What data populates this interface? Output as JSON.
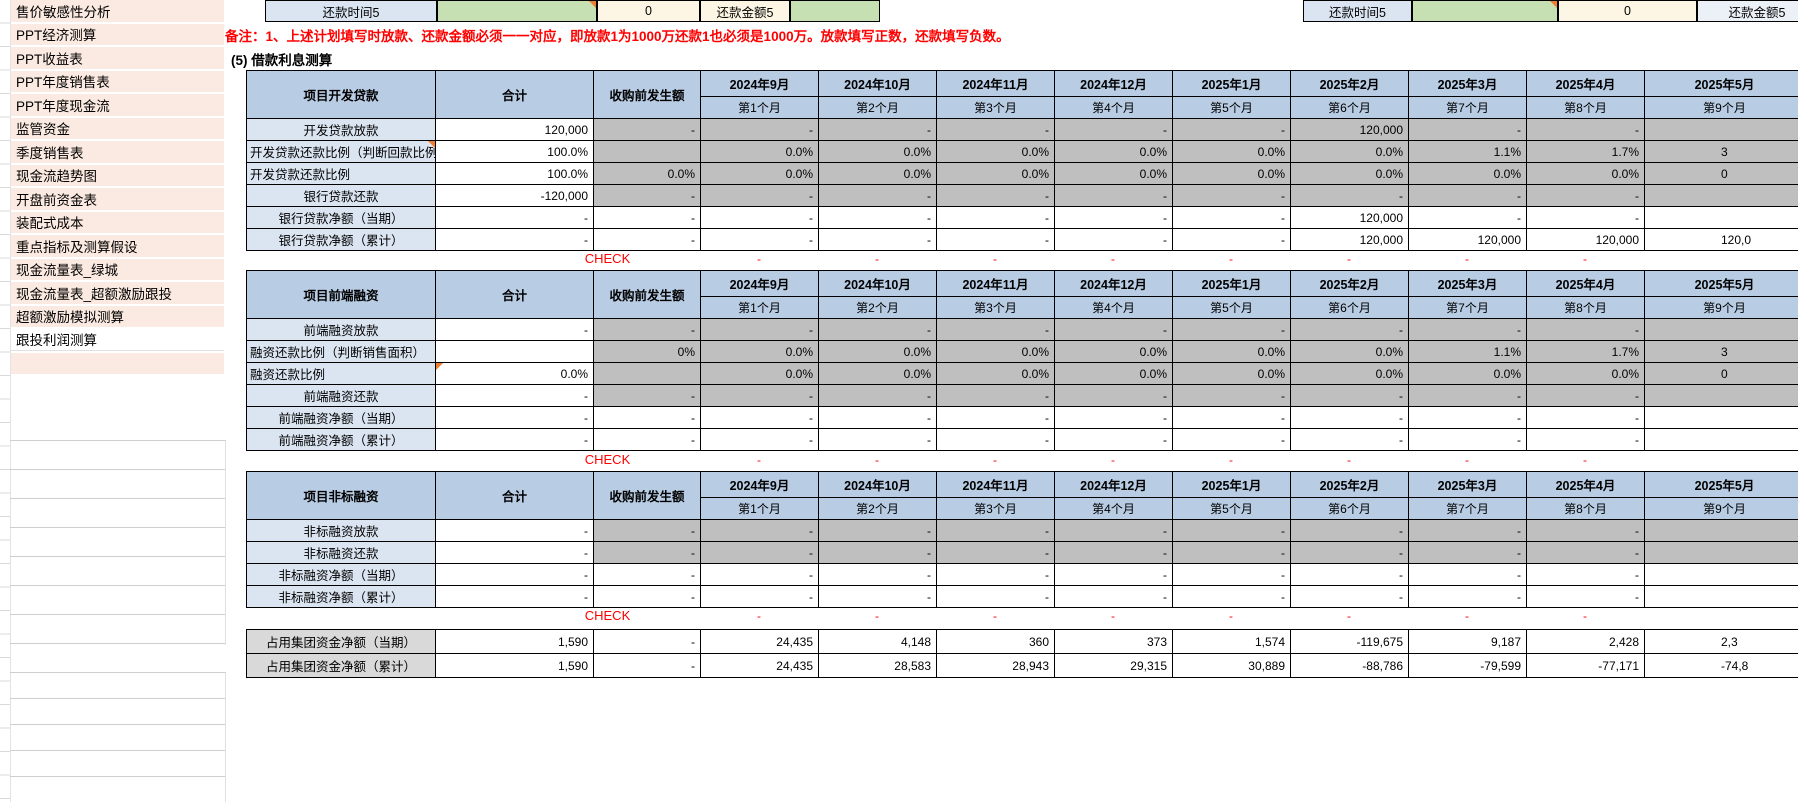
{
  "colors": {
    "header_blue": "#b8cce4",
    "label_blue": "#dbe5f1",
    "cell_gray": "#bfbfbf",
    "summary_gray": "#d9d9d9",
    "green": "#c6e0b4",
    "cream": "#fdf6e4",
    "sidebar_pink": "#fbeae1",
    "check_red": "#ff0000",
    "marker_orange": "#ed7d31"
  },
  "sidebar": {
    "items": [
      "售价敏感性分析",
      "PPT经济测算",
      "PPT收益表",
      "PPT年度销售表",
      "PPT年度现金流",
      "监管资金",
      "季度销售表",
      "现金流趋势图",
      "开盘前资金表",
      "装配式成本",
      "重点指标及测算假设",
      "现金流量表_绿城",
      "现金流量表_超额激励跟投",
      "超额激励模拟测算",
      "跟投利润测算"
    ]
  },
  "top_row": {
    "left": {
      "time_label": "还款时间5",
      "value": "0",
      "amount_label": "还款金额5"
    },
    "right": {
      "time_label": "还款时间5",
      "value": "0",
      "amount_label": "还款金额5"
    }
  },
  "note": "备注：1、上述计划填写时放款、还款金额必须一一对应，即放款1为1000万还款1也必须是1000万。放款填写正数，还款填写负数。",
  "section_title": "(5) 借款利息测算",
  "columns": {
    "total": "合计",
    "pre": "收购前发生额",
    "months": [
      [
        "2024年9月",
        "第1个月"
      ],
      [
        "2024年10月",
        "第2个月"
      ],
      [
        "2024年11月",
        "第3个月"
      ],
      [
        "2024年12月",
        "第4个月"
      ],
      [
        "2025年1月",
        "第5个月"
      ],
      [
        "2025年2月",
        "第6个月"
      ],
      [
        "2025年3月",
        "第7个月"
      ],
      [
        "2025年4月",
        "第8个月"
      ],
      [
        "2025年5月",
        "第9个月"
      ]
    ]
  },
  "check_label": "CHECK",
  "tables": [
    {
      "title": "项目开发贷款",
      "rows": [
        {
          "label": "开发贷款放款",
          "align": "center",
          "bg": "gray",
          "total": "120,000",
          "pre": "-",
          "months": [
            "-",
            "-",
            "-",
            "-",
            "-",
            "120,000",
            "-",
            "-",
            ""
          ]
        },
        {
          "label": "开发贷款还款比例（判断回款比例）",
          "align": "left",
          "bg": "gray",
          "marker": "label",
          "total": "100.0%",
          "pre": "",
          "months": [
            "0.0%",
            "0.0%",
            "0.0%",
            "0.0%",
            "0.0%",
            "0.0%",
            "1.1%",
            "1.7%",
            "3"
          ]
        },
        {
          "label": "开发贷款还款比例",
          "align": "left",
          "bg": "gray",
          "total": "100.0%",
          "pre": "0.0%",
          "months": [
            "0.0%",
            "0.0%",
            "0.0%",
            "0.0%",
            "0.0%",
            "0.0%",
            "0.0%",
            "0.0%",
            "0"
          ]
        },
        {
          "label": "银行贷款还款",
          "align": "center",
          "bg": "gray",
          "total": "-120,000",
          "pre": "-",
          "months": [
            "-",
            "-",
            "-",
            "-",
            "-",
            "-",
            "-",
            "-",
            ""
          ]
        },
        {
          "label": "银行贷款净额（当期）",
          "align": "center",
          "bg": "white",
          "total": "-",
          "pre": "-",
          "months": [
            "-",
            "-",
            "-",
            "-",
            "-",
            "120,000",
            "-",
            "-",
            ""
          ]
        },
        {
          "label": "银行贷款净额（累计）",
          "align": "center",
          "bg": "white",
          "total": "-",
          "pre": "-",
          "months": [
            "-",
            "-",
            "-",
            "-",
            "-",
            "120,000",
            "120,000",
            "120,000",
            "120,0"
          ]
        }
      ]
    },
    {
      "title": "项目前端融资",
      "rows": [
        {
          "label": "前端融资放款",
          "align": "center",
          "bg": "gray",
          "total": "-",
          "pre": "-",
          "months": [
            "-",
            "-",
            "-",
            "-",
            "-",
            "-",
            "-",
            "-",
            ""
          ]
        },
        {
          "label": "融资还款比例（判断销售面积）",
          "align": "left",
          "bg": "gray",
          "total": "",
          "pre": "0%",
          "months": [
            "0.0%",
            "0.0%",
            "0.0%",
            "0.0%",
            "0.0%",
            "0.0%",
            "1.1%",
            "1.7%",
            "3"
          ]
        },
        {
          "label": "融资还款比例",
          "align": "left",
          "bg": "gray",
          "marker": "total",
          "total": "0.0%",
          "pre": "",
          "months": [
            "0.0%",
            "0.0%",
            "0.0%",
            "0.0%",
            "0.0%",
            "0.0%",
            "0.0%",
            "0.0%",
            "0"
          ]
        },
        {
          "label": "前端融资还款",
          "align": "center",
          "bg": "gray",
          "total": "-",
          "pre": "-",
          "months": [
            "-",
            "-",
            "-",
            "-",
            "-",
            "-",
            "-",
            "-",
            ""
          ]
        },
        {
          "label": "前端融资净额（当期）",
          "align": "center",
          "bg": "white",
          "total": "-",
          "pre": "-",
          "months": [
            "-",
            "-",
            "-",
            "-",
            "-",
            "-",
            "-",
            "-",
            ""
          ]
        },
        {
          "label": "前端融资净额（累计）",
          "align": "center",
          "bg": "white",
          "total": "-",
          "pre": "-",
          "months": [
            "-",
            "-",
            "-",
            "-",
            "-",
            "-",
            "-",
            "-",
            ""
          ]
        }
      ]
    },
    {
      "title": "项目非标融资",
      "rows": [
        {
          "label": "非标融资放款",
          "align": "center",
          "bg": "gray",
          "total": "-",
          "pre": "-",
          "months": [
            "-",
            "-",
            "-",
            "-",
            "-",
            "-",
            "-",
            "-",
            ""
          ]
        },
        {
          "label": "非标融资还款",
          "align": "center",
          "bg": "gray",
          "total": "-",
          "pre": "-",
          "months": [
            "-",
            "-",
            "-",
            "-",
            "-",
            "-",
            "-",
            "-",
            ""
          ]
        },
        {
          "label": "非标融资净额（当期）",
          "align": "center",
          "bg": "white",
          "total": "-",
          "pre": "-",
          "months": [
            "-",
            "-",
            "-",
            "-",
            "-",
            "-",
            "-",
            "-",
            ""
          ]
        },
        {
          "label": "非标融资净额（累计）",
          "align": "center",
          "bg": "white",
          "total": "-",
          "pre": "-",
          "months": [
            "-",
            "-",
            "-",
            "-",
            "-",
            "-",
            "-",
            "-",
            ""
          ]
        }
      ]
    }
  ],
  "summary_rows": [
    {
      "label": "占用集团资金净额（当期）",
      "total": "1,590",
      "pre": "-",
      "months": [
        "24,435",
        "4,148",
        "360",
        "373",
        "1,574",
        "-119,675",
        "9,187",
        "2,428",
        "2,3"
      ]
    },
    {
      "label": "占用集团资金净额（累计）",
      "total": "1,590",
      "pre": "-",
      "months": [
        "24,435",
        "28,583",
        "28,943",
        "29,315",
        "30,889",
        "-88,786",
        "-79,599",
        "-77,171",
        "-74,8"
      ]
    }
  ]
}
